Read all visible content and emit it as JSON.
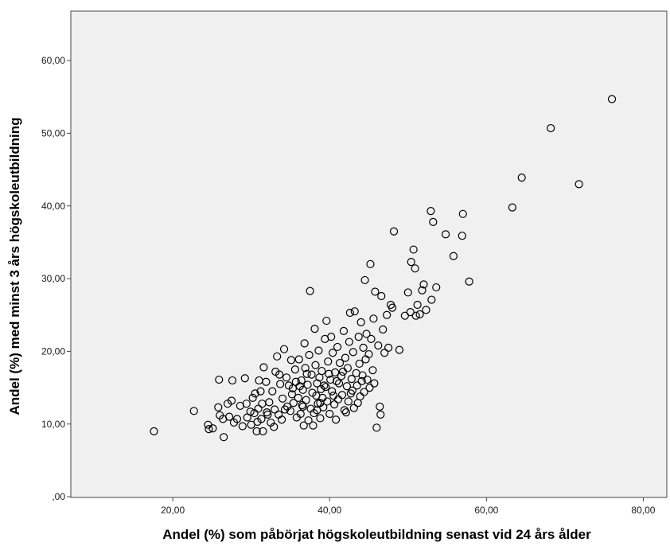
{
  "chart_data": {
    "type": "scatter",
    "title": "",
    "xlabel": "Andel (%) som påbörjat högskoleutbildning senast vid 24 års ålder",
    "ylabel": "Andel (%) med minst 3 års högskoleutbildning",
    "xlim": [
      7.0,
      83.0
    ],
    "ylim": [
      -0.1,
      66.8
    ],
    "x_ticks": [
      20,
      40,
      60,
      80
    ],
    "x_tick_labels": [
      "20,00",
      "40,00",
      "60,00",
      "80,00"
    ],
    "y_ticks": [
      0,
      10,
      20,
      30,
      40,
      50,
      60
    ],
    "y_tick_labels": [
      ",00",
      "10,00",
      "20,00",
      "30,00",
      "40,00",
      "50,00",
      "60,00"
    ],
    "grid": false,
    "legend": "none",
    "colors": {
      "plot_background": "#f0f0f0",
      "marker_stroke": "#000000",
      "axis": "#444444"
    },
    "points": [
      [
        17.6,
        9.0
      ],
      [
        22.7,
        11.8
      ],
      [
        24.5,
        9.9
      ],
      [
        24.6,
        9.3
      ],
      [
        25.1,
        9.4
      ],
      [
        25.9,
        16.1
      ],
      [
        25.8,
        12.3
      ],
      [
        26.0,
        11.2
      ],
      [
        26.4,
        10.7
      ],
      [
        26.5,
        8.2
      ],
      [
        27.0,
        12.8
      ],
      [
        27.2,
        11.0
      ],
      [
        27.5,
        13.2
      ],
      [
        27.8,
        10.2
      ],
      [
        27.6,
        16.0
      ],
      [
        28.2,
        10.7
      ],
      [
        28.6,
        12.5
      ],
      [
        28.9,
        9.7
      ],
      [
        29.2,
        16.3
      ],
      [
        29.4,
        12.8
      ],
      [
        29.5,
        10.9
      ],
      [
        29.9,
        11.7
      ],
      [
        30.0,
        9.9
      ],
      [
        30.2,
        13.6
      ],
      [
        30.4,
        11.5
      ],
      [
        30.5,
        14.2
      ],
      [
        30.7,
        9.0
      ],
      [
        30.9,
        12.1
      ],
      [
        31.0,
        16.0
      ],
      [
        31.3,
        10.7
      ],
      [
        31.4,
        12.8
      ],
      [
        31.6,
        17.8
      ],
      [
        31.5,
        9.0
      ],
      [
        31.9,
        15.8
      ],
      [
        32.1,
        11.3
      ],
      [
        32.3,
        13.0
      ],
      [
        32.5,
        10.2
      ],
      [
        32.7,
        14.5
      ],
      [
        32.9,
        9.6
      ],
      [
        33.0,
        12.0
      ],
      [
        33.1,
        17.2
      ],
      [
        33.3,
        19.3
      ],
      [
        33.5,
        11.3
      ],
      [
        33.7,
        15.5
      ],
      [
        33.9,
        10.6
      ],
      [
        34.0,
        13.5
      ],
      [
        34.2,
        20.3
      ],
      [
        34.5,
        16.4
      ],
      [
        34.6,
        12.4
      ],
      [
        34.8,
        15.3
      ],
      [
        35.0,
        11.8
      ],
      [
        35.1,
        18.8
      ],
      [
        35.2,
        14.1
      ],
      [
        35.4,
        12.9
      ],
      [
        35.6,
        17.5
      ],
      [
        35.7,
        15.8
      ],
      [
        35.8,
        10.9
      ],
      [
        36.0,
        13.6
      ],
      [
        36.1,
        18.9
      ],
      [
        36.3,
        11.4
      ],
      [
        36.4,
        16.0
      ],
      [
        36.5,
        12.6
      ],
      [
        36.6,
        14.7
      ],
      [
        36.7,
        9.8
      ],
      [
        36.8,
        21.1
      ],
      [
        36.9,
        17.7
      ],
      [
        37.0,
        13.3
      ],
      [
        37.2,
        15.4
      ],
      [
        37.3,
        10.5
      ],
      [
        37.4,
        19.5
      ],
      [
        37.5,
        28.3
      ],
      [
        37.6,
        12.1
      ],
      [
        37.7,
        16.8
      ],
      [
        37.8,
        14.3
      ],
      [
        37.9,
        9.8
      ],
      [
        38.0,
        11.5
      ],
      [
        38.1,
        23.1
      ],
      [
        38.2,
        18.1
      ],
      [
        38.3,
        13.9
      ],
      [
        38.4,
        15.6
      ],
      [
        38.5,
        12.8
      ],
      [
        38.6,
        20.1
      ],
      [
        38.7,
        16.4
      ],
      [
        38.8,
        10.8
      ],
      [
        38.9,
        14.8
      ],
      [
        39.0,
        17.3
      ],
      [
        39.2,
        12.3
      ],
      [
        39.4,
        21.7
      ],
      [
        39.5,
        15.1
      ],
      [
        39.6,
        24.2
      ],
      [
        39.7,
        13.1
      ],
      [
        39.8,
        18.6
      ],
      [
        40.0,
        11.4
      ],
      [
        40.1,
        16.1
      ],
      [
        40.2,
        22.0
      ],
      [
        40.3,
        14.5
      ],
      [
        40.4,
        19.8
      ],
      [
        40.6,
        12.7
      ],
      [
        40.7,
        17.1
      ],
      [
        40.8,
        10.6
      ],
      [
        40.9,
        15.9
      ],
      [
        41.0,
        20.6
      ],
      [
        41.1,
        13.4
      ],
      [
        41.3,
        18.4
      ],
      [
        41.5,
        16.6
      ],
      [
        41.6,
        14.0
      ],
      [
        41.8,
        22.8
      ],
      [
        41.9,
        11.9
      ],
      [
        42.0,
        19.1
      ],
      [
        42.2,
        15.2
      ],
      [
        42.3,
        17.7
      ],
      [
        42.4,
        13.1
      ],
      [
        42.5,
        21.3
      ],
      [
        42.6,
        25.3
      ],
      [
        42.8,
        16.2
      ],
      [
        42.9,
        14.6
      ],
      [
        43.0,
        19.9
      ],
      [
        43.1,
        12.2
      ],
      [
        43.2,
        25.5
      ],
      [
        43.4,
        17.0
      ],
      [
        43.5,
        15.3
      ],
      [
        43.7,
        22.0
      ],
      [
        43.8,
        18.3
      ],
      [
        43.9,
        13.8
      ],
      [
        44.0,
        24.0
      ],
      [
        44.2,
        16.7
      ],
      [
        44.3,
        20.5
      ],
      [
        44.4,
        14.4
      ],
      [
        44.5,
        29.8
      ],
      [
        44.6,
        18.9
      ],
      [
        44.7,
        22.4
      ],
      [
        44.8,
        16.1
      ],
      [
        45.0,
        19.6
      ],
      [
        45.1,
        15.0
      ],
      [
        45.2,
        32.0
      ],
      [
        45.3,
        21.7
      ],
      [
        45.5,
        17.4
      ],
      [
        45.6,
        24.5
      ],
      [
        45.7,
        15.6
      ],
      [
        45.8,
        28.2
      ],
      [
        46.0,
        9.5
      ],
      [
        46.2,
        20.8
      ],
      [
        46.4,
        12.4
      ],
      [
        46.5,
        11.3
      ],
      [
        46.6,
        27.6
      ],
      [
        46.8,
        23.0
      ],
      [
        47.0,
        19.8
      ],
      [
        47.3,
        25.0
      ],
      [
        47.5,
        20.5
      ],
      [
        47.8,
        26.4
      ],
      [
        48.0,
        26.0
      ],
      [
        48.2,
        36.5
      ],
      [
        48.9,
        20.2
      ],
      [
        49.6,
        24.9
      ],
      [
        50.0,
        28.1
      ],
      [
        50.3,
        25.4
      ],
      [
        50.4,
        32.3
      ],
      [
        50.7,
        34.0
      ],
      [
        50.9,
        31.4
      ],
      [
        51.0,
        24.9
      ],
      [
        51.2,
        26.4
      ],
      [
        51.5,
        25.1
      ],
      [
        51.8,
        28.4
      ],
      [
        52.0,
        29.2
      ],
      [
        52.3,
        25.7
      ],
      [
        52.9,
        39.3
      ],
      [
        53.0,
        27.1
      ],
      [
        53.2,
        37.8
      ],
      [
        53.6,
        28.8
      ],
      [
        54.8,
        36.1
      ],
      [
        55.8,
        33.1
      ],
      [
        56.9,
        35.9
      ],
      [
        57.0,
        38.9
      ],
      [
        57.8,
        29.6
      ],
      [
        63.3,
        39.8
      ],
      [
        64.5,
        43.9
      ],
      [
        68.2,
        50.7
      ],
      [
        71.8,
        43.0
      ],
      [
        76.0,
        54.7
      ],
      [
        31.2,
        14.5
      ],
      [
        33.6,
        16.8
      ],
      [
        35.3,
        14.9
      ],
      [
        36.2,
        15.2
      ],
      [
        37.1,
        16.9
      ],
      [
        38.4,
        11.9
      ],
      [
        39.1,
        13.6
      ],
      [
        39.9,
        16.9
      ],
      [
        41.2,
        15.6
      ],
      [
        42.7,
        14.2
      ],
      [
        43.6,
        12.9
      ],
      [
        34.3,
        12.0
      ],
      [
        36.6,
        12.4
      ],
      [
        38.8,
        12.9
      ],
      [
        40.5,
        13.9
      ],
      [
        42.1,
        11.6
      ],
      [
        44.1,
        15.9
      ],
      [
        30.8,
        10.3
      ],
      [
        32.0,
        11.6
      ],
      [
        39.3,
        15.3
      ],
      [
        41.7,
        17.2
      ]
    ]
  }
}
